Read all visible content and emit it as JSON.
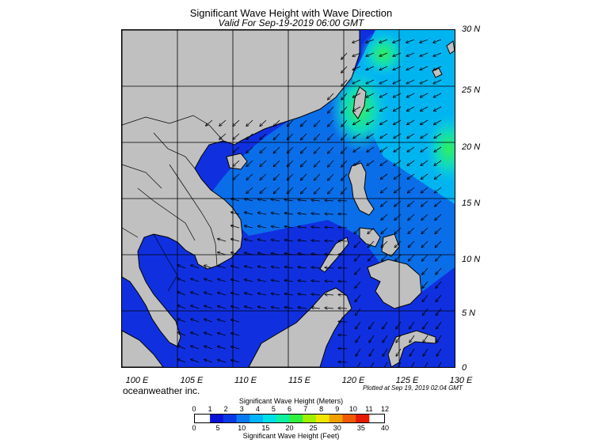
{
  "title": "Significant Wave Height with Wave Direction",
  "subtitle": "Valid For Sep-19-2019 06:00 GMT",
  "credit": "oceanweather inc.",
  "plotted_note": "Plotted at Sep 19, 2019 02:04 GMT",
  "x_axis_labels": [
    "100 E",
    "105 E",
    "110 E",
    "115 E",
    "120 E",
    "125 E",
    "130 E"
  ],
  "y_axis_labels": [
    "30 N",
    "25 N",
    "20 N",
    "15 N",
    "10 N",
    "5 N",
    "0"
  ],
  "colorbar": {
    "meters_title": "Significant Wave Height (Meters)",
    "feet_title": "Significant Wave Height (Feet)",
    "meter_ticks": [
      "0",
      "1",
      "2",
      "3",
      "4",
      "5",
      "6",
      "7",
      "8",
      "9",
      "10",
      "11",
      "12"
    ],
    "feet_ticks": [
      "0",
      "5",
      "10",
      "15",
      "20",
      "25",
      "30",
      "35",
      "40"
    ],
    "colors": [
      "#0a14d6",
      "#0a3ae6",
      "#0a7af0",
      "#00b4ff",
      "#00e0e6",
      "#10f0a0",
      "#30f040",
      "#a0f000",
      "#f0e600",
      "#f0a000",
      "#f05a00",
      "#e61a00"
    ]
  },
  "colors": {
    "land": "#c0c0c0",
    "sea_calm": "#1030e0",
    "sea_mid": "#0a6ee8",
    "sea_high": "#00c8f0",
    "sea_peak": "#20e680",
    "grid": "#000000",
    "arrow": "#000000"
  }
}
